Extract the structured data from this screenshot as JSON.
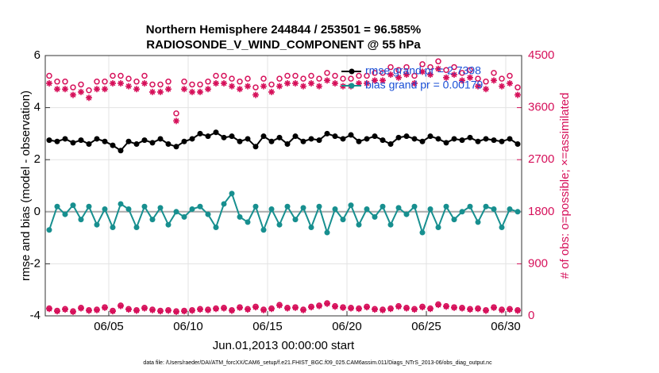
{
  "chart_data": {
    "type": "line",
    "title": "Northern Hemisphere 244844 / 253501 = 96.585%",
    "subtitle": "RADIOSONDE_V_WIND_COMPONENT @ 55 hPa",
    "xlabel": "Jun.01,2013 00:00:00 start",
    "ylabel": "rmse and bias (model - observation)",
    "y2label": "# of obs: o=possible; ×=assimilated",
    "footnote": "data file: /Users/raeder/DAI/ATM_forcXX/CAM6_setup/f.e21.FHIST_BGC.f09_025.CAM6assim.011/Diags_NTrS_2013-06/obs_diag_output.nc",
    "legend": "northeast",
    "grid": true,
    "xlim": [
      1,
      31
    ],
    "xticks": [
      {
        "value": 5,
        "label": "06/05"
      },
      {
        "value": 10,
        "label": "06/10"
      },
      {
        "value": 15,
        "label": "06/15"
      },
      {
        "value": 20,
        "label": "06/20"
      },
      {
        "value": 25,
        "label": "06/25"
      },
      {
        "value": 30,
        "label": "06/30"
      }
    ],
    "ylim": [
      -4,
      6
    ],
    "yticks": [
      -4,
      -2,
      0,
      2,
      4,
      6
    ],
    "y2lim": [
      0,
      4500
    ],
    "y2ticks": [
      0,
      900,
      1800,
      2700,
      3600,
      4500
    ],
    "y2color": "#d6105a",
    "x": [
      1.25,
      1.75,
      2.25,
      2.75,
      3.25,
      3.75,
      4.25,
      4.75,
      5.25,
      5.75,
      6.25,
      6.75,
      7.25,
      7.75,
      8.25,
      8.75,
      9.25,
      9.75,
      10.25,
      10.75,
      11.25,
      11.75,
      12.25,
      12.75,
      13.25,
      13.75,
      14.25,
      14.75,
      15.25,
      15.75,
      16.25,
      16.75,
      17.25,
      17.75,
      18.25,
      18.75,
      19.25,
      19.75,
      20.25,
      20.75,
      21.25,
      21.75,
      22.25,
      22.75,
      23.25,
      23.75,
      24.25,
      24.75,
      25.25,
      25.75,
      26.25,
      26.75,
      27.25,
      27.75,
      28.25,
      28.75,
      29.25,
      29.75,
      30.25,
      30.75
    ],
    "series": [
      {
        "name": "rmse grand pr = 2.7398",
        "color": "#000000",
        "marker": "dot",
        "line": true,
        "values": [
          2.75,
          2.7,
          2.8,
          2.65,
          2.75,
          2.6,
          2.8,
          2.7,
          2.55,
          2.35,
          2.7,
          2.6,
          2.75,
          2.65,
          2.8,
          2.6,
          2.5,
          2.7,
          2.8,
          3.0,
          2.9,
          3.05,
          2.85,
          2.9,
          2.7,
          2.8,
          2.5,
          2.9,
          2.7,
          2.85,
          2.6,
          2.9,
          2.7,
          2.8,
          2.75,
          3.0,
          2.9,
          2.8,
          2.95,
          2.7,
          2.8,
          2.9,
          2.75,
          2.6,
          2.85,
          2.9,
          2.8,
          2.7,
          2.9,
          2.8,
          2.65,
          2.8,
          2.75,
          2.85,
          2.7,
          2.8,
          2.75,
          2.7,
          2.8,
          2.6
        ]
      },
      {
        "name": "bias grand pr = 0.00179",
        "color": "#178f8f",
        "marker": "dot",
        "line": true,
        "values": [
          -0.7,
          0.2,
          -0.1,
          0.25,
          -0.3,
          0.2,
          -0.5,
          0.1,
          -0.6,
          0.3,
          0.1,
          -0.6,
          0.2,
          -0.3,
          0.15,
          -0.5,
          0.0,
          -0.2,
          0.1,
          0.2,
          -0.1,
          -0.6,
          0.3,
          0.7,
          -0.2,
          -0.4,
          0.2,
          -0.7,
          0.1,
          -0.5,
          0.2,
          -0.3,
          0.15,
          -0.6,
          0.2,
          -0.8,
          0.1,
          -0.3,
          0.25,
          -0.5,
          0.1,
          -0.2,
          0.2,
          -0.5,
          0.15,
          -0.1,
          0.2,
          -0.8,
          0.1,
          -0.6,
          0.2,
          -0.3,
          0.0,
          0.2,
          -0.4,
          0.2,
          0.1,
          -0.6,
          0.1,
          0.0
        ]
      },
      {
        "color": "#d6105a",
        "marker": "circle",
        "axis": "y2",
        "values": [
          4150,
          4050,
          4050,
          3950,
          4000,
          3900,
          4050,
          4050,
          4150,
          4150,
          4100,
          4050,
          4150,
          4000,
          4000,
          4050,
          3500,
          4050,
          4000,
          4000,
          4050,
          4150,
          4150,
          4100,
          4050,
          4100,
          3950,
          4100,
          4000,
          4100,
          4150,
          4150,
          4100,
          4150,
          4100,
          4200,
          4150,
          4100,
          4100,
          4150,
          4150,
          4200,
          4200,
          4300,
          4250,
          4300,
          4150,
          4350,
          4300,
          4400,
          4250,
          4300,
          4200,
          4250,
          4100,
          4050,
          4200,
          4100,
          4150,
          3950
        ]
      },
      {
        "color": "#d6105a",
        "marker": "star",
        "axis": "y2",
        "values": [
          4020,
          3920,
          3920,
          3820,
          3870,
          3770,
          3920,
          3920,
          4020,
          4020,
          3970,
          3920,
          4020,
          3870,
          3870,
          3920,
          3370,
          3920,
          3870,
          3870,
          3920,
          4020,
          4020,
          3970,
          3920,
          3970,
          3820,
          3970,
          3870,
          3970,
          4020,
          4020,
          3970,
          4020,
          3970,
          4070,
          4020,
          3970,
          3970,
          4020,
          4020,
          4070,
          4070,
          4170,
          4120,
          4170,
          4020,
          4220,
          4170,
          4270,
          4120,
          4170,
          4070,
          4120,
          3970,
          3920,
          4070,
          3970,
          4020,
          3820
        ]
      },
      {
        "color": "#d6105a",
        "marker": "circle",
        "axis": "y2",
        "values": [
          130,
          90,
          120,
          80,
          140,
          100,
          110,
          150,
          90,
          180,
          120,
          100,
          140,
          110,
          90,
          100,
          80,
          90,
          100,
          120,
          110,
          130,
          140,
          100,
          150,
          120,
          160,
          110,
          130,
          190,
          140,
          150,
          110,
          160,
          180,
          220,
          170,
          150,
          140,
          130,
          160,
          120,
          110,
          130,
          170,
          140,
          120,
          160,
          130,
          200,
          170,
          150,
          140,
          120,
          130,
          100,
          150,
          110,
          120,
          100
        ]
      },
      {
        "color": "#d6105a",
        "marker": "star",
        "axis": "y2",
        "values": [
          120,
          80,
          110,
          70,
          130,
          90,
          100,
          140,
          80,
          170,
          110,
          90,
          130,
          100,
          80,
          90,
          70,
          80,
          90,
          110,
          100,
          120,
          130,
          90,
          140,
          110,
          150,
          100,
          120,
          180,
          130,
          140,
          100,
          150,
          170,
          210,
          160,
          140,
          130,
          120,
          150,
          110,
          100,
          120,
          160,
          130,
          110,
          150,
          120,
          190,
          160,
          140,
          130,
          110,
          120,
          90,
          140,
          100,
          110,
          90
        ]
      }
    ]
  }
}
